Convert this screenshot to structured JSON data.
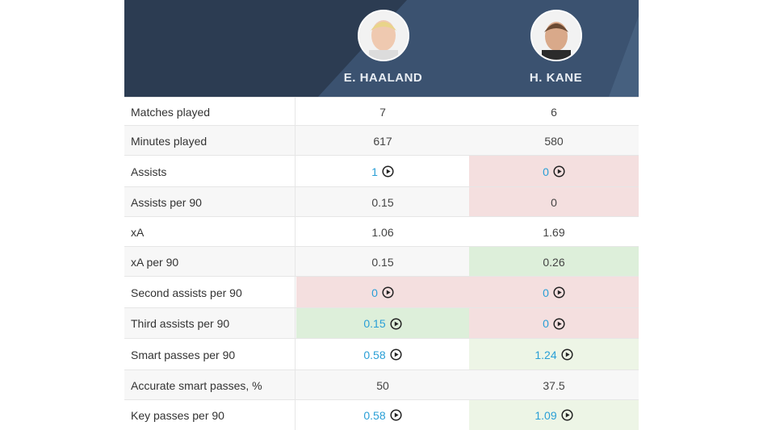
{
  "header": {
    "players": [
      {
        "name": "E. HAALAND"
      },
      {
        "name": "H. KANE"
      }
    ]
  },
  "table": {
    "rows": [
      {
        "label": "Matches played",
        "cells": [
          {
            "text": "7"
          },
          {
            "text": "6"
          }
        ]
      },
      {
        "label": "Minutes played",
        "cells": [
          {
            "text": "617"
          },
          {
            "text": "580"
          }
        ]
      },
      {
        "label": "Assists",
        "cells": [
          {
            "text": "1",
            "link": true
          },
          {
            "text": "0",
            "link": true,
            "highlight": "red"
          }
        ]
      },
      {
        "label": "Assists per 90",
        "cells": [
          {
            "text": "0.15"
          },
          {
            "text": "0",
            "highlight": "red"
          }
        ]
      },
      {
        "label": "xA",
        "cells": [
          {
            "text": "1.06"
          },
          {
            "text": "1.69"
          }
        ]
      },
      {
        "label": "xA per 90",
        "cells": [
          {
            "text": "0.15"
          },
          {
            "text": "0.26",
            "highlight": "green"
          }
        ]
      },
      {
        "label": "Second assists per 90",
        "cells": [
          {
            "text": "0",
            "link": true,
            "highlight": "red"
          },
          {
            "text": "0",
            "link": true,
            "highlight": "red"
          }
        ]
      },
      {
        "label": "Third assists per 90",
        "cells": [
          {
            "text": "0.15",
            "link": true,
            "highlight": "green"
          },
          {
            "text": "0",
            "link": true,
            "highlight": "red"
          }
        ]
      },
      {
        "label": "Smart passes per 90",
        "cells": [
          {
            "text": "0.58",
            "link": true
          },
          {
            "text": "1.24",
            "link": true,
            "highlight": "lightgreen"
          }
        ]
      },
      {
        "label": "Accurate smart passes, %",
        "cells": [
          {
            "text": "50"
          },
          {
            "text": "37.5"
          }
        ]
      },
      {
        "label": "Key passes per 90",
        "cells": [
          {
            "text": "0.58",
            "link": true
          },
          {
            "text": "1.09",
            "link": true,
            "highlight": "lightgreen"
          }
        ]
      }
    ]
  }
}
